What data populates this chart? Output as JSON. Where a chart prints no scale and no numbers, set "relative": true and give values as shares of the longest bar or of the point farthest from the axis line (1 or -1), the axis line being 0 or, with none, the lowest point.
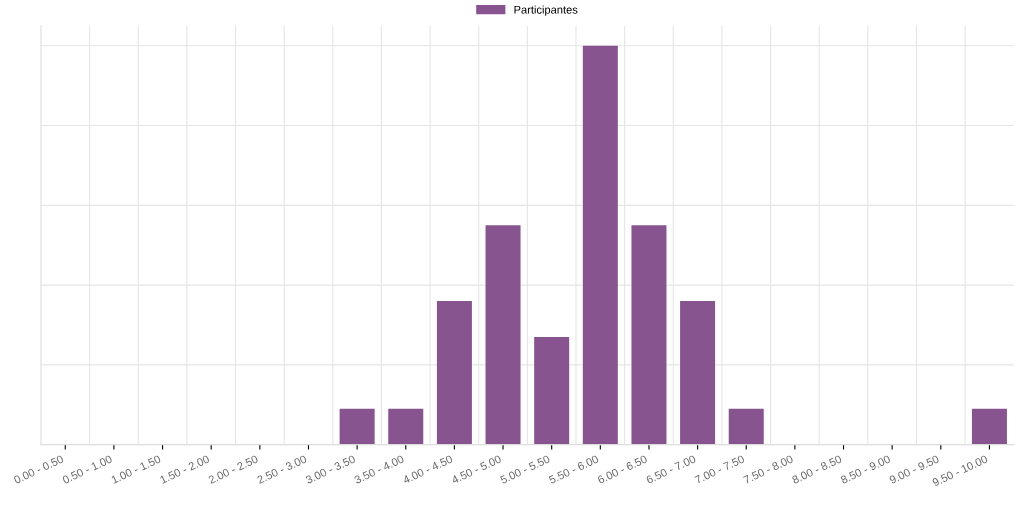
{
  "chart_data": {
    "type": "bar",
    "relative": true,
    "categories": [
      "0.00 - 0.50",
      "0.50 - 1.00",
      "1.00 - 1.50",
      "1.50 - 2.00",
      "2.00 - 2.50",
      "2.50 - 3.00",
      "3.00 - 3.50",
      "3.50 - 4.00",
      "4.00 - 4.50",
      "4.50 - 5.00",
      "5.00 - 5.50",
      "5.50 - 6.00",
      "6.00 - 6.50",
      "6.50 - 7.00",
      "7.00 - 7.50",
      "7.50 - 8.00",
      "8.00 - 8.50",
      "8.50 - 9.00",
      "9.00 - 9.50",
      "9.50 - 10.00"
    ],
    "series": [
      {
        "name": "Participantes",
        "color": "#87548f",
        "values": [
          0,
          0,
          0,
          0,
          0,
          0,
          0.09,
          0.09,
          0.36,
          0.55,
          0.27,
          1,
          0.55,
          0.36,
          0.09,
          0,
          0,
          0,
          0,
          0.09
        ]
      }
    ],
    "grid": true,
    "legend": "top"
  }
}
